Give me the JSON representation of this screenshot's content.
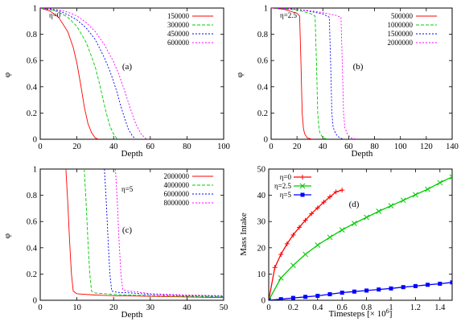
{
  "chart_data": [
    {
      "type": "line",
      "panel_label": "(a)",
      "annotation": "η=0",
      "xlabel": "Depth",
      "ylabel": "φ",
      "xlim": [
        0,
        100
      ],
      "ylim": [
        0,
        1
      ],
      "xticks": [
        "0",
        "20",
        "40",
        "60",
        "80",
        "100"
      ],
      "yticks": [
        "0",
        "0.2",
        "0.4",
        "0.6",
        "0.8",
        "1"
      ],
      "legend_position": "top-right",
      "series": [
        {
          "name": "150000",
          "color": "#ff0000",
          "dash": "solid",
          "x": [
            0,
            5,
            10,
            15,
            18,
            20,
            22,
            24,
            26,
            28,
            30,
            32
          ],
          "y": [
            1.0,
            0.98,
            0.93,
            0.82,
            0.7,
            0.58,
            0.42,
            0.25,
            0.12,
            0.05,
            0.01,
            0
          ]
        },
        {
          "name": "300000",
          "color": "#00cc00",
          "dash": "dashed",
          "x": [
            0,
            5,
            10,
            15,
            20,
            25,
            28,
            30,
            32,
            34,
            36,
            38,
            40,
            42
          ],
          "y": [
            1.0,
            0.99,
            0.97,
            0.93,
            0.86,
            0.74,
            0.63,
            0.55,
            0.44,
            0.32,
            0.2,
            0.1,
            0.04,
            0
          ]
        },
        {
          "name": "450000",
          "color": "#0000ff",
          "dash": "dotted",
          "x": [
            0,
            5,
            10,
            15,
            20,
            25,
            30,
            35,
            38,
            40,
            42,
            44,
            46,
            48,
            50,
            52
          ],
          "y": [
            1.0,
            0.99,
            0.98,
            0.95,
            0.91,
            0.85,
            0.76,
            0.62,
            0.52,
            0.44,
            0.35,
            0.25,
            0.16,
            0.08,
            0.03,
            0
          ]
        },
        {
          "name": "600000",
          "color": "#ff00ff",
          "dash": "dotted",
          "x": [
            0,
            5,
            10,
            15,
            20,
            25,
            30,
            35,
            40,
            43,
            46,
            49,
            52,
            55,
            58
          ],
          "y": [
            1.0,
            0.995,
            0.985,
            0.97,
            0.94,
            0.89,
            0.82,
            0.72,
            0.59,
            0.49,
            0.37,
            0.24,
            0.12,
            0.04,
            0
          ]
        }
      ]
    },
    {
      "type": "line",
      "panel_label": "(b)",
      "annotation": "η=2.5",
      "xlabel": "Depth",
      "ylabel": "φ",
      "xlim": [
        0,
        140
      ],
      "ylim": [
        0,
        1
      ],
      "xticks": [
        "0",
        "20",
        "40",
        "60",
        "80",
        "100",
        "120",
        "140"
      ],
      "yticks": [
        "0",
        "0.2",
        "0.4",
        "0.6",
        "0.8",
        "1"
      ],
      "legend_position": "top-right",
      "series": [
        {
          "name": "500000",
          "color": "#ff0000",
          "dash": "solid",
          "x": [
            0,
            10,
            20,
            22,
            23,
            24,
            25,
            26,
            28,
            30,
            32
          ],
          "y": [
            1.0,
            0.99,
            0.96,
            0.94,
            0.6,
            0.2,
            0.08,
            0.04,
            0.01,
            0.005,
            0
          ]
        },
        {
          "name": "1000000",
          "color": "#00cc00",
          "dash": "dashed",
          "x": [
            0,
            10,
            20,
            30,
            34,
            35,
            36,
            37,
            38,
            40,
            42,
            44
          ],
          "y": [
            1.0,
            0.995,
            0.985,
            0.96,
            0.94,
            0.6,
            0.2,
            0.08,
            0.04,
            0.015,
            0.005,
            0
          ]
        },
        {
          "name": "1500000",
          "color": "#0000ff",
          "dash": "dotted",
          "x": [
            0,
            10,
            20,
            30,
            40,
            45,
            46,
            47,
            48,
            50,
            53,
            56
          ],
          "y": [
            1.0,
            0.995,
            0.99,
            0.975,
            0.955,
            0.93,
            0.6,
            0.2,
            0.09,
            0.04,
            0.01,
            0
          ]
        },
        {
          "name": "2000000",
          "color": "#ff00ff",
          "dash": "dotted",
          "x": [
            0,
            10,
            20,
            30,
            40,
            50,
            54,
            55,
            56,
            57,
            59,
            62,
            66
          ],
          "y": [
            1.0,
            0.998,
            0.99,
            0.98,
            0.965,
            0.945,
            0.93,
            0.6,
            0.2,
            0.09,
            0.04,
            0.01,
            0
          ]
        }
      ]
    },
    {
      "type": "line",
      "panel_label": "(c)",
      "annotation": "η=5",
      "xlabel": "Depth",
      "ylabel": "φ",
      "xlim": [
        0,
        50
      ],
      "ylim": [
        0,
        1
      ],
      "xticks": [
        "0",
        "10",
        "20",
        "30",
        "40",
        "50"
      ],
      "yticks": [
        "0",
        "0.2",
        "0.4",
        "0.6",
        "0.8",
        "1"
      ],
      "legend_position": "top-right",
      "series": [
        {
          "name": "2000000",
          "color": "#ff0000",
          "dash": "solid",
          "x": [
            7,
            7.5,
            8,
            8.5,
            9,
            10,
            15,
            20,
            30,
            40,
            50
          ],
          "y": [
            1.0,
            0.75,
            0.45,
            0.2,
            0.07,
            0.05,
            0.04,
            0.035,
            0.03,
            0.025,
            0.02
          ]
        },
        {
          "name": "4000000",
          "color": "#00cc00",
          "dash": "dashed",
          "x": [
            12,
            12.5,
            13,
            13.5,
            14,
            15,
            20,
            30,
            40,
            50
          ],
          "y": [
            1.0,
            0.75,
            0.45,
            0.2,
            0.07,
            0.055,
            0.045,
            0.035,
            0.03,
            0.025
          ]
        },
        {
          "name": "6000000",
          "color": "#0000ff",
          "dash": "dotted",
          "x": [
            17.5,
            18,
            18.5,
            19,
            19.5,
            21,
            25,
            30,
            40,
            50
          ],
          "y": [
            1.0,
            0.75,
            0.45,
            0.2,
            0.07,
            0.06,
            0.055,
            0.045,
            0.035,
            0.03
          ]
        },
        {
          "name": "8000000",
          "color": "#ff00ff",
          "dash": "dotted",
          "x": [
            20.5,
            21,
            21.5,
            22,
            22.5,
            24,
            26,
            30,
            40,
            50
          ],
          "y": [
            1.0,
            0.75,
            0.45,
            0.2,
            0.08,
            0.07,
            0.065,
            0.05,
            0.04,
            0.035
          ]
        }
      ]
    },
    {
      "type": "line",
      "panel_label": "(d)",
      "xlabel": "Timesteps [× 10",
      "xlabel_sup": "6",
      "xlabel_end": "]",
      "ylabel": "Mass Intake",
      "xlim": [
        0,
        1.5
      ],
      "ylim": [
        0,
        50
      ],
      "xticks": [
        "0",
        "0.2",
        "0.4",
        "0.6",
        "0.8",
        "1",
        "1.2",
        "1.4"
      ],
      "yticks": [
        "0",
        "10",
        "20",
        "30",
        "40",
        "50"
      ],
      "legend_position": "top-left",
      "series": [
        {
          "name": "η=0",
          "color": "#ff0000",
          "marker": "plus",
          "x": [
            0,
            0.05,
            0.1,
            0.15,
            0.2,
            0.25,
            0.3,
            0.35,
            0.4,
            0.45,
            0.5,
            0.55,
            0.6
          ],
          "y": [
            0,
            12.5,
            17.5,
            21.5,
            24.9,
            27.8,
            30.5,
            33.0,
            35.2,
            37.4,
            39.4,
            41.3,
            42.0
          ]
        },
        {
          "name": "η=2.5",
          "color": "#00cc00",
          "marker": "cross",
          "x": [
            0,
            0.1,
            0.2,
            0.3,
            0.4,
            0.5,
            0.6,
            0.7,
            0.8,
            0.9,
            1.0,
            1.1,
            1.2,
            1.3,
            1.4,
            1.5
          ],
          "y": [
            0,
            8.5,
            13.3,
            17.5,
            21.0,
            24.0,
            26.8,
            29.3,
            31.6,
            33.9,
            36.0,
            38.1,
            40.2,
            42.3,
            44.8,
            47.0
          ]
        },
        {
          "name": "η=5",
          "color": "#0000ff",
          "marker": "square",
          "x": [
            0,
            0.1,
            0.2,
            0.3,
            0.4,
            0.5,
            0.6,
            0.7,
            0.8,
            0.9,
            1.0,
            1.1,
            1.2,
            1.3,
            1.4,
            1.5
          ],
          "y": [
            0,
            0.4,
            0.9,
            1.3,
            1.7,
            2.3,
            2.9,
            3.3,
            3.7,
            4.1,
            4.5,
            5.0,
            5.4,
            5.9,
            6.3,
            6.8
          ]
        }
      ]
    }
  ]
}
